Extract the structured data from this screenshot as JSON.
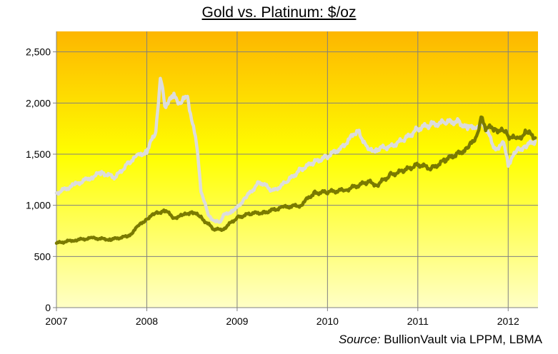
{
  "chart_data": {
    "type": "line",
    "title": "Gold vs. Platinum: $/oz",
    "xlabel": "",
    "ylabel": "",
    "xlim": [
      2007,
      2012.33
    ],
    "ylim": [
      0,
      2700
    ],
    "y_ticks": [
      0,
      500,
      1000,
      1500,
      2000,
      2500
    ],
    "y_tick_labels": [
      "0",
      "500",
      "1,000",
      "1,500",
      "2,000",
      "2,500"
    ],
    "x_ticks": [
      2007,
      2008,
      2009,
      2010,
      2011,
      2012
    ],
    "x_tick_labels": [
      "2007",
      "2008",
      "2009",
      "2010",
      "2011",
      "2012"
    ],
    "grid": true,
    "legend": "none",
    "background_gradient": [
      "#fdb600",
      "#ffff00",
      "#ffffc6"
    ],
    "series": [
      {
        "color": "#dcdcdc",
        "x": [
          2007.0,
          2007.2,
          2007.4,
          2007.5,
          2007.65,
          2007.8,
          2007.9,
          2008.0,
          2008.1,
          2008.15,
          2008.2,
          2008.3,
          2008.37,
          2008.45,
          2008.55,
          2008.6,
          2008.68,
          2008.75,
          2008.8,
          2008.85,
          2008.95,
          2009.0,
          2009.1,
          2009.25,
          2009.4,
          2009.55,
          2009.7,
          2009.85,
          2010.0,
          2010.15,
          2010.3,
          2010.35,
          2010.45,
          2010.55,
          2010.7,
          2010.85,
          2011.0,
          2011.15,
          2011.3,
          2011.45,
          2011.55,
          2011.65,
          2011.7,
          2011.75,
          2011.85,
          2011.95,
          2012.0,
          2012.1,
          2012.2,
          2012.3
        ],
        "values": [
          1120,
          1200,
          1280,
          1320,
          1270,
          1420,
          1480,
          1530,
          1720,
          2250,
          1980,
          2060,
          2000,
          2060,
          1600,
          1150,
          900,
          850,
          830,
          900,
          950,
          980,
          1080,
          1230,
          1140,
          1230,
          1350,
          1420,
          1480,
          1560,
          1700,
          1720,
          1530,
          1550,
          1580,
          1640,
          1750,
          1790,
          1810,
          1820,
          1750,
          1780,
          1800,
          1760,
          1550,
          1600,
          1400,
          1540,
          1580,
          1630
        ]
      },
      {
        "color": "#7a7a00",
        "x": [
          2007.0,
          2007.2,
          2007.4,
          2007.6,
          2007.8,
          2007.9,
          2008.0,
          2008.1,
          2008.2,
          2008.3,
          2008.4,
          2008.5,
          2008.6,
          2008.75,
          2008.85,
          2009.0,
          2009.15,
          2009.3,
          2009.5,
          2009.7,
          2009.85,
          2010.0,
          2010.2,
          2010.45,
          2010.55,
          2010.7,
          2010.85,
          2011.0,
          2011.15,
          2011.3,
          2011.45,
          2011.55,
          2011.65,
          2011.7,
          2011.75,
          2011.85,
          2011.95,
          2012.0,
          2012.1,
          2012.2,
          2012.3
        ],
        "values": [
          630,
          660,
          680,
          665,
          700,
          790,
          870,
          920,
          950,
          880,
          900,
          940,
          880,
          760,
          770,
          880,
          920,
          930,
          980,
          1000,
          1120,
          1130,
          1150,
          1230,
          1200,
          1300,
          1340,
          1400,
          1360,
          1440,
          1510,
          1550,
          1680,
          1850,
          1760,
          1750,
          1720,
          1680,
          1640,
          1720,
          1660
        ]
      }
    ]
  },
  "source": {
    "label": "Source:",
    "text": " BullionVault via LPPM, LBMA"
  }
}
